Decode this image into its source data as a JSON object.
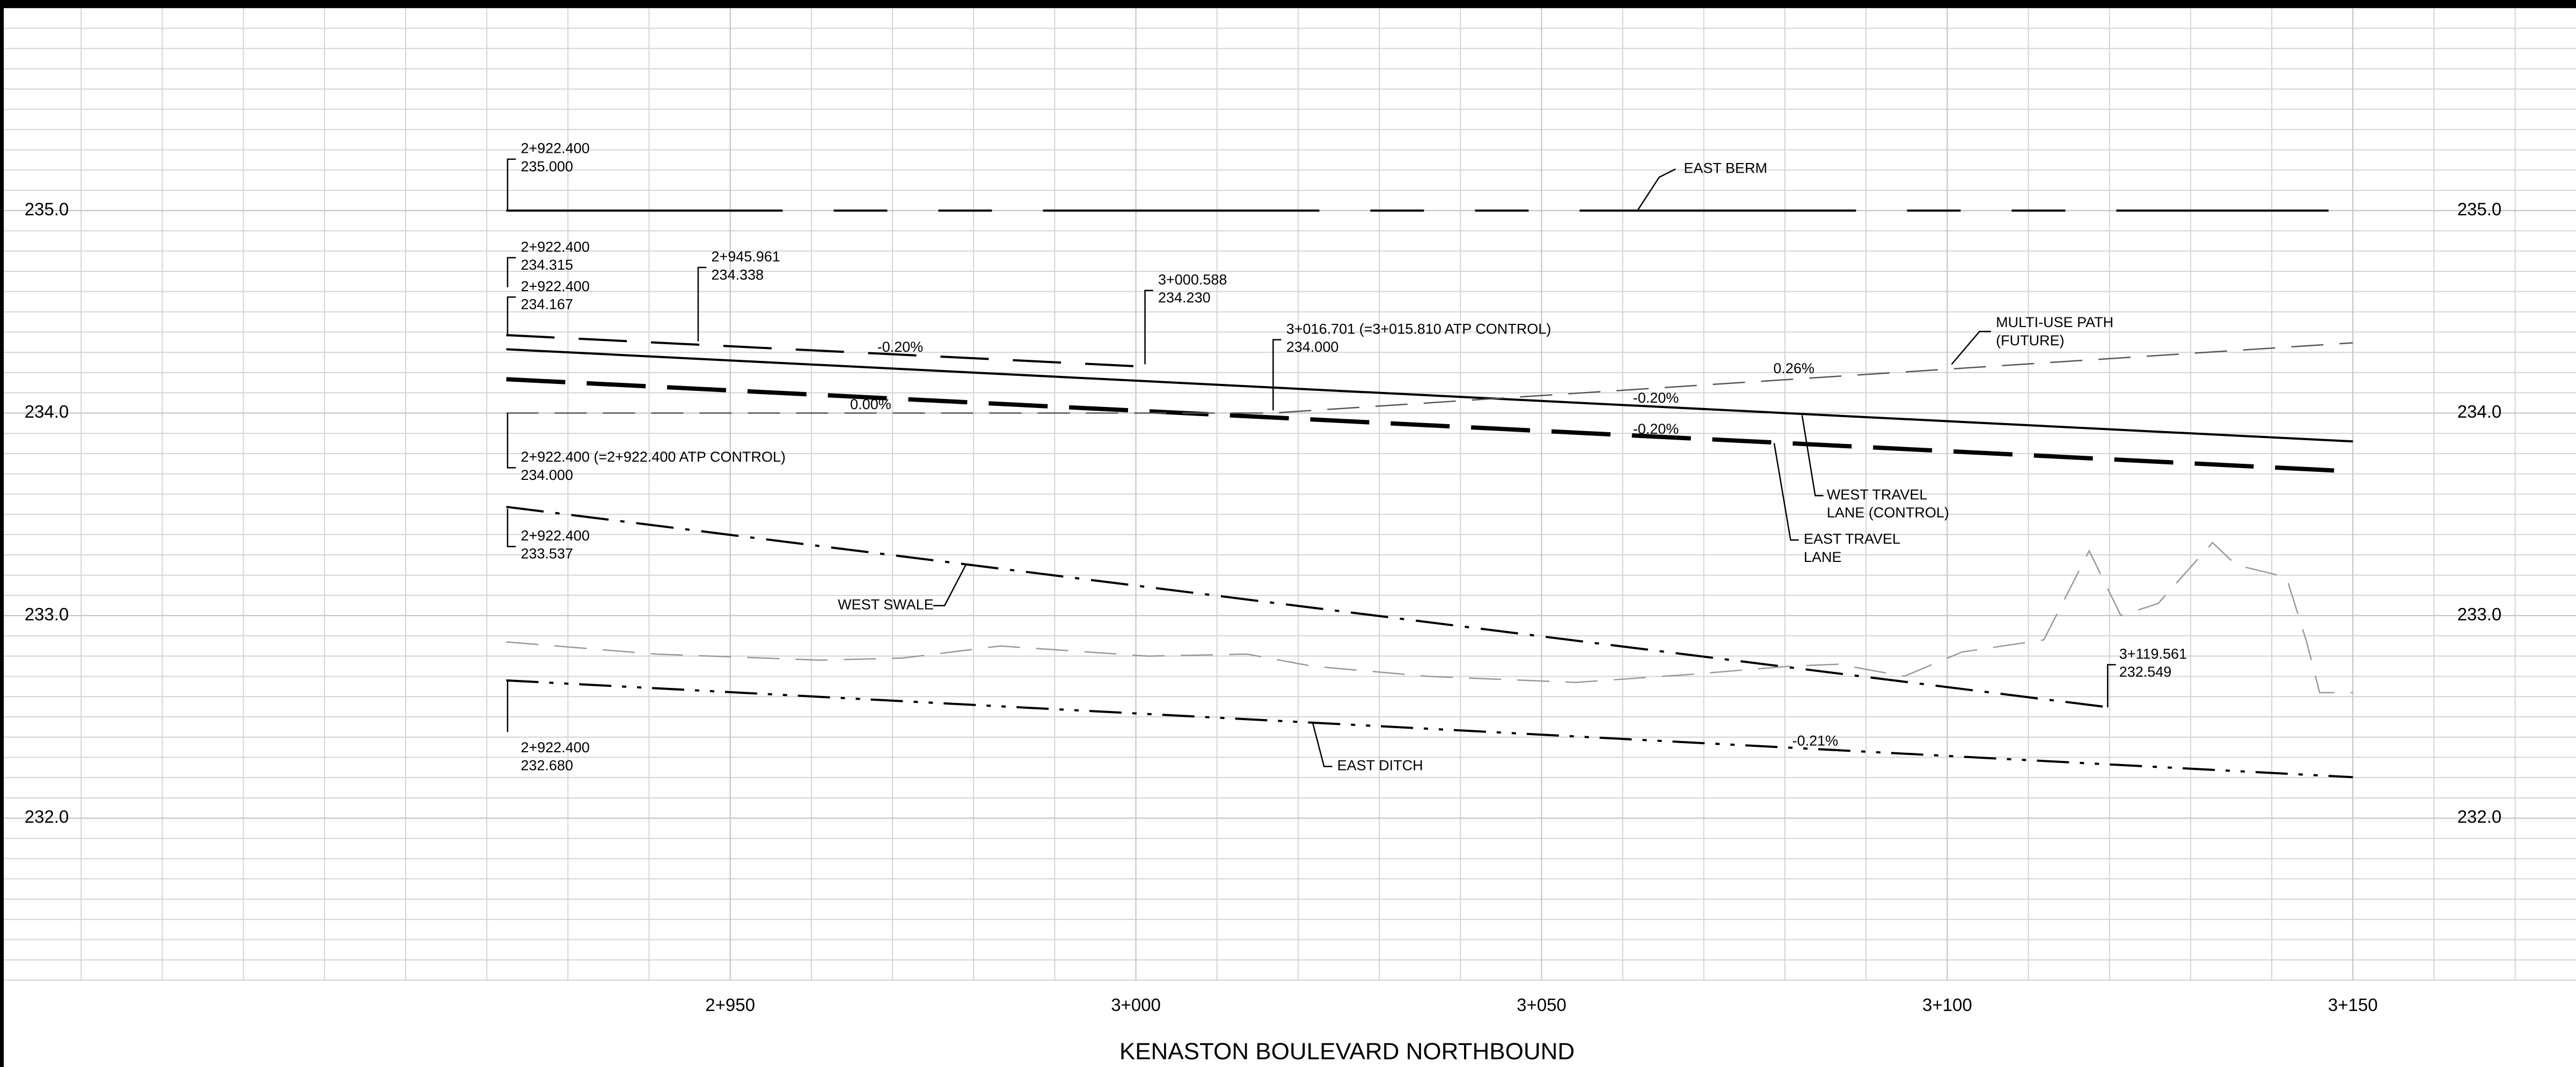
{
  "chart_data": {
    "type": "line",
    "title": "KENASTON BOULEVARD NORTHBOUND",
    "xlim": [
      2860,
      3177.5
    ],
    "ylim": [
      231.2,
      236.0
    ],
    "xticks": [
      {
        "value": 2950,
        "label": "2+950"
      },
      {
        "value": 3000,
        "label": "3+000"
      },
      {
        "value": 3050,
        "label": "3+050"
      },
      {
        "value": 3100,
        "label": "3+100"
      },
      {
        "value": 3150,
        "label": "3+150"
      }
    ],
    "yticks": [
      {
        "value": 232,
        "label": "232.0"
      },
      {
        "value": 233,
        "label": "233.0"
      },
      {
        "value": 234,
        "label": "234.0"
      },
      {
        "value": 235,
        "label": "235.0"
      }
    ],
    "grid": true,
    "series": [
      {
        "name": "EAST BERM",
        "color": "#000000",
        "line_style": "long-dash",
        "x": [
          2922.4,
          3147.0
        ],
        "values": [
          235.0,
          235.0
        ]
      },
      {
        "color": "#000000",
        "line_style": "dashed",
        "x": [
          2922.4,
          2945.961,
          3000.588
        ],
        "values": [
          234.385,
          234.338,
          234.23
        ]
      },
      {
        "name": "WEST TRAVEL LANE (CONTROL)",
        "color": "#000000",
        "line_style": "solid",
        "x": [
          2922.4,
          3150.0
        ],
        "values": [
          234.315,
          233.86
        ]
      },
      {
        "name": "EAST TRAVEL LANE",
        "color": "#000000",
        "line_style": "heavy-dash",
        "x": [
          2922.4,
          3150.0
        ],
        "values": [
          234.167,
          233.712
        ]
      },
      {
        "name": "MULTI-USE PATH (FUTURE)",
        "color": "#555555",
        "line_style": "thin-dash",
        "x": [
          2922.4,
          3016.701,
          3150.0
        ],
        "values": [
          234.0,
          234.0,
          234.347
        ]
      },
      {
        "name": "WEST SWALE",
        "color": "#000000",
        "line_style": "dash-dot",
        "x": [
          2922.4,
          3119.561
        ],
        "values": [
          233.537,
          232.549
        ]
      },
      {
        "name": "EAST DITCH",
        "color": "#000000",
        "line_style": "dash-dot-dot",
        "x": [
          2922.4,
          3150.0
        ],
        "values": [
          232.68,
          232.202
        ]
      },
      {
        "color": "#999999",
        "line_style": "thin-dash",
        "x": [
          2922.4,
          2940.8,
          2961.1,
          2971.2,
          2983.3,
          3001.5,
          3013.7,
          3021.8,
          3036.0,
          3054.2,
          3068.4,
          3080.5,
          3086.6,
          3094.7,
          3101.8,
          3111.9,
          3117.5,
          3121.4,
          3126.0,
          3132.7,
          3135.6,
          3141.8,
          3144.3,
          3145.9,
          3150.0
        ],
        "values": [
          232.87,
          232.81,
          232.78,
          232.79,
          232.85,
          232.8,
          232.81,
          232.75,
          232.7,
          232.67,
          232.71,
          232.75,
          232.76,
          232.7,
          232.82,
          232.88,
          233.32,
          233.0,
          233.06,
          233.36,
          233.25,
          233.19,
          232.87,
          232.62,
          232.62
        ]
      }
    ],
    "annotations": [
      {
        "lines": [
          "2+922.400",
          "235.000"
        ]
      },
      {
        "lines": [
          "EAST BERM"
        ]
      },
      {
        "lines": [
          "2+922.400",
          "234.315"
        ]
      },
      {
        "lines": [
          "2+922.400",
          "234.167"
        ]
      },
      {
        "lines": [
          "2+945.961",
          "234.338"
        ]
      },
      {
        "lines": [
          "3+000.588",
          "234.230"
        ]
      },
      {
        "lines": [
          "3+016.701 (=3+015.810 ATP CONTROL)",
          "234.000"
        ]
      },
      {
        "lines": [
          "MULTI-USE PATH",
          "(FUTURE)"
        ]
      },
      {
        "lines": [
          "0.26%"
        ]
      },
      {
        "lines": [
          "-0.20%"
        ]
      },
      {
        "lines": [
          "0.00%"
        ]
      },
      {
        "lines": [
          "-0.20%"
        ]
      },
      {
        "lines": [
          "-0.20%"
        ]
      },
      {
        "lines": [
          "2+922.400 (=2+922.400 ATP CONTROL)",
          "234.000"
        ]
      },
      {
        "lines": [
          "WEST TRAVEL",
          "LANE (CONTROL)"
        ]
      },
      {
        "lines": [
          "EAST TRAVEL",
          "LANE"
        ]
      },
      {
        "lines": [
          "2+922.400",
          "233.537"
        ]
      },
      {
        "lines": [
          "WEST SWALE"
        ]
      },
      {
        "lines": [
          "3+119.561",
          "232.549"
        ]
      },
      {
        "lines": [
          "2+922.400",
          "232.680"
        ]
      },
      {
        "lines": [
          "EAST DITCH"
        ]
      },
      {
        "lines": [
          "-0.21%"
        ]
      }
    ]
  }
}
